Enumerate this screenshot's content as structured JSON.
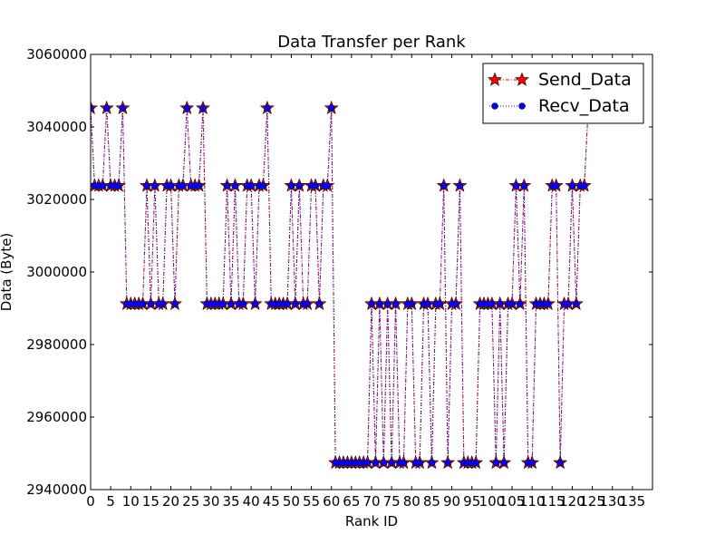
{
  "chart_data": {
    "type": "line",
    "title": "Data Transfer per Rank",
    "xlabel": "Rank ID",
    "ylabel": "Data (Byte)",
    "xlim": [
      0,
      140
    ],
    "ylim": [
      2940000,
      3060000
    ],
    "x_ticks": [
      0,
      5,
      10,
      15,
      20,
      25,
      30,
      35,
      40,
      45,
      50,
      55,
      60,
      65,
      70,
      75,
      80,
      85,
      90,
      95,
      100,
      105,
      110,
      115,
      120,
      125,
      130,
      135
    ],
    "y_ticks": [
      2940000,
      2960000,
      2980000,
      3000000,
      3020000,
      3040000,
      3060000
    ],
    "x_tick_labels": [
      "0",
      "5",
      "10",
      "15",
      "20",
      "25",
      "30",
      "35",
      "40",
      "45",
      "50",
      "55",
      "60",
      "65",
      "70",
      "75",
      "80",
      "85",
      "90",
      "95",
      "100",
      "105",
      "110",
      "115",
      "120",
      "125",
      "130",
      "135"
    ],
    "y_tick_labels": [
      "2940000",
      "2960000",
      "2980000",
      "3000000",
      "3020000",
      "3040000",
      "3060000"
    ],
    "grid": false,
    "legend_position": "top-right",
    "x": [
      0,
      1,
      2,
      3,
      4,
      5,
      6,
      7,
      8,
      9,
      10,
      11,
      12,
      13,
      14,
      15,
      16,
      17,
      18,
      19,
      20,
      21,
      22,
      23,
      24,
      25,
      26,
      27,
      28,
      29,
      30,
      31,
      32,
      33,
      34,
      35,
      36,
      37,
      38,
      39,
      40,
      41,
      42,
      43,
      44,
      45,
      46,
      47,
      48,
      49,
      50,
      51,
      52,
      53,
      54,
      55,
      56,
      57,
      58,
      59,
      60,
      61,
      62,
      63,
      64,
      65,
      66,
      67,
      68,
      69,
      70,
      71,
      72,
      73,
      74,
      75,
      76,
      77,
      78,
      79,
      80,
      81,
      82,
      83,
      84,
      85,
      86,
      87,
      88,
      89,
      90,
      91,
      92,
      93,
      94,
      95,
      96,
      97,
      98,
      99,
      100,
      101,
      102,
      103,
      104,
      105,
      106,
      107,
      108,
      109,
      110,
      111,
      112,
      113,
      114,
      115,
      116,
      117,
      118,
      119,
      120,
      121,
      122,
      123,
      124
    ],
    "series": [
      {
        "name": "Send_Data",
        "color": "#ff0000",
        "marker": "star",
        "linestyle": "dash-dot",
        "values": [
          3045200,
          3023800,
          3023800,
          3023800,
          3045200,
          3023800,
          3023800,
          3023800,
          3045200,
          2991200,
          2991200,
          2991200,
          2991200,
          2991200,
          3023800,
          2991200,
          3023800,
          2991200,
          2991200,
          3023800,
          3023800,
          2991200,
          3023800,
          3023800,
          3045200,
          3023800,
          3023800,
          3023800,
          3045200,
          2991200,
          2991200,
          2991200,
          2991200,
          2991200,
          3023800,
          2991200,
          3023800,
          2991200,
          2991200,
          3023800,
          3023800,
          2991200,
          3023800,
          3023800,
          3045200,
          2991200,
          2991200,
          2991200,
          2991200,
          2991200,
          3023800,
          2991200,
          3023800,
          2991200,
          2991200,
          3023800,
          3023800,
          2991200,
          3023800,
          3023800,
          3045200,
          2947400,
          2947400,
          2947400,
          2947400,
          2947400,
          2947400,
          2947400,
          2947400,
          2947400,
          2991200,
          2947400,
          2991200,
          2947400,
          2991200,
          2947400,
          2991200,
          2947400,
          2947400,
          2991200,
          2991200,
          2947400,
          2947400,
          2991200,
          2991200,
          2947400,
          2991200,
          2991200,
          3023800,
          2947400,
          2991200,
          2991200,
          3023800,
          2947400,
          2947400,
          2947400,
          2947400,
          2991200,
          2991200,
          2991200,
          2991200,
          2947400,
          2991200,
          2947400,
          2991200,
          2991200,
          3023800,
          2991200,
          3023800,
          2947400,
          2947400,
          2991200,
          2991200,
          2991200,
          2991200,
          3023800,
          3023800,
          2947400,
          2991200,
          2991200,
          3023800,
          2991200,
          3023800,
          3023800,
          3045200
        ]
      },
      {
        "name": "Recv_Data",
        "color": "#0000ff",
        "marker": "circle",
        "linestyle": "dotted",
        "values": [
          3045200,
          3023800,
          3023800,
          3023800,
          3045200,
          3023800,
          3023800,
          3023800,
          3045200,
          2991200,
          2991200,
          2991200,
          2991200,
          2991200,
          3023800,
          2991200,
          3023800,
          2991200,
          2991200,
          3023800,
          3023800,
          2991200,
          3023800,
          3023800,
          3045200,
          3023800,
          3023800,
          3023800,
          3045200,
          2991200,
          2991200,
          2991200,
          2991200,
          2991200,
          3023800,
          2991200,
          3023800,
          2991200,
          2991200,
          3023800,
          3023800,
          2991200,
          3023800,
          3023800,
          3045200,
          2991200,
          2991200,
          2991200,
          2991200,
          2991200,
          3023800,
          2991200,
          3023800,
          2991200,
          2991200,
          3023800,
          3023800,
          2991200,
          3023800,
          3023800,
          3045200,
          2947400,
          2947400,
          2947400,
          2947400,
          2947400,
          2947400,
          2947400,
          2947400,
          2947400,
          2991200,
          2947400,
          2991200,
          2947400,
          2991200,
          2947400,
          2991200,
          2947400,
          2947400,
          2991200,
          2991200,
          2947400,
          2947400,
          2991200,
          2991200,
          2947400,
          2991200,
          2991200,
          3023800,
          2947400,
          2991200,
          2991200,
          3023800,
          2947400,
          2947400,
          2947400,
          2947400,
          2991200,
          2991200,
          2991200,
          2991200,
          2947400,
          2991200,
          2947400,
          2991200,
          2991200,
          3023800,
          2991200,
          3023800,
          2947400,
          2947400,
          2991200,
          2991200,
          2991200,
          2991200,
          3023800,
          3023800,
          2947400,
          2991200,
          2991200,
          3023800,
          2991200,
          3023800,
          3023800,
          3045200
        ]
      }
    ]
  }
}
